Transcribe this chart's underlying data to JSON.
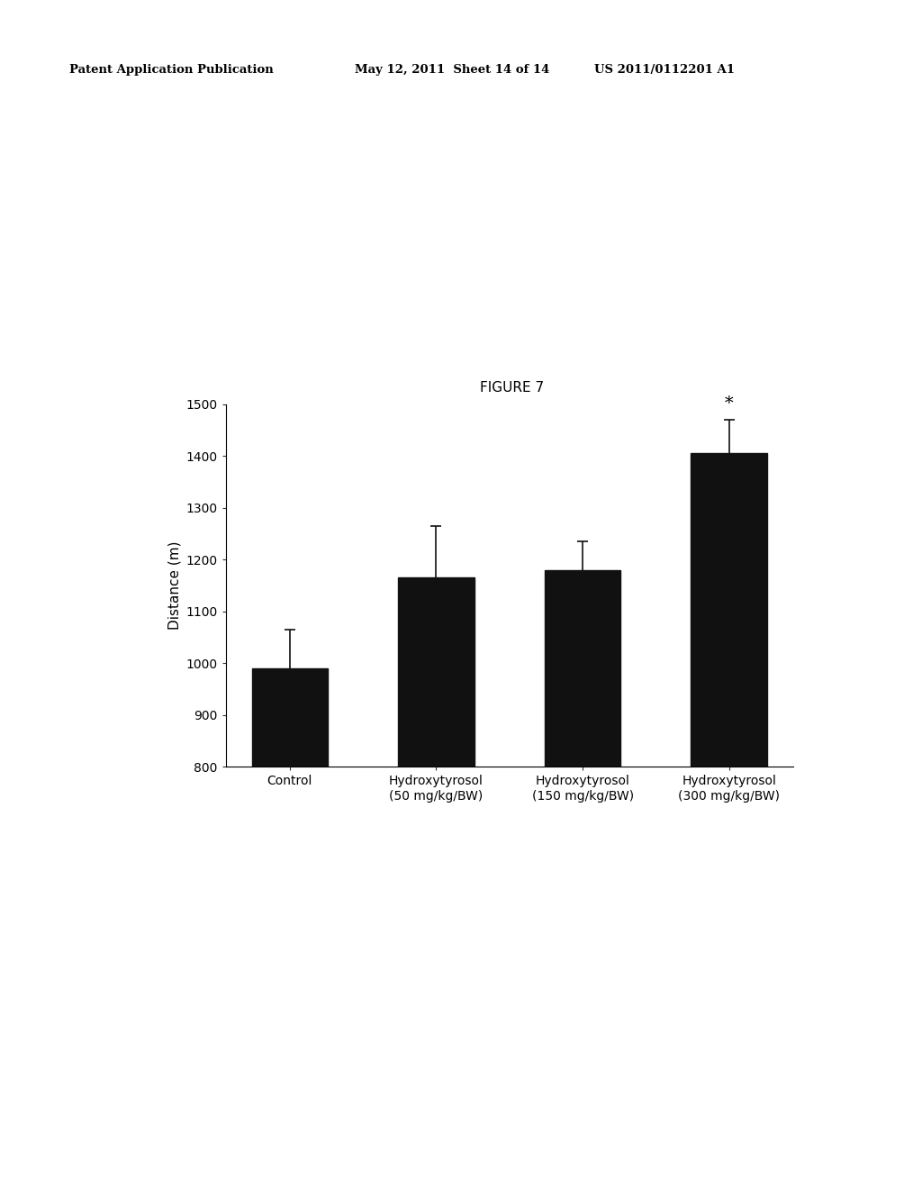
{
  "patent_left": "Patent Application Publication",
  "patent_mid": "May 12, 2011  Sheet 14 of 14",
  "patent_right": "US 2011/0112201 A1",
  "figure_title": "FIGURE 7",
  "categories": [
    "Control",
    "Hydroxytyrosol\n(50 mg/kg/BW)",
    "Hydroxytyrosol\n(150 mg/kg/BW)",
    "Hydroxytyrosol\n(300 mg/kg/BW)"
  ],
  "values": [
    990,
    1165,
    1180,
    1405
  ],
  "errors": [
    75,
    100,
    55,
    65
  ],
  "bar_color": "#111111",
  "error_color": "#111111",
  "ylabel": "Distance (m)",
  "ylim": [
    800,
    1500
  ],
  "yticks": [
    800,
    900,
    1000,
    1100,
    1200,
    1300,
    1400,
    1500
  ],
  "bar_width": 0.52,
  "significance_label": "*",
  "significance_bar_index": 3,
  "background_color": "#ffffff",
  "header_fontsize": 9.5,
  "title_fontsize": 11,
  "axis_label_fontsize": 11,
  "tick_fontsize": 10,
  "xticklabel_fontsize": 10
}
